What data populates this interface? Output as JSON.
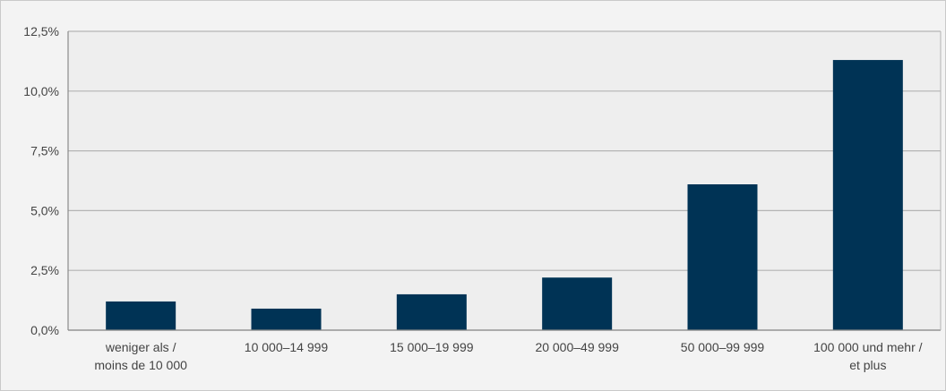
{
  "chart_data": {
    "type": "bar",
    "title": "",
    "xlabel": "",
    "ylabel": "",
    "categories": [
      [
        "weniger als /",
        "moins de 10 000"
      ],
      [
        "10 000–14 999"
      ],
      [
        "15 000–19 999"
      ],
      [
        "20 000–49 999"
      ],
      [
        "50 000–99 999"
      ],
      [
        "100 000 und mehr /",
        "et plus"
      ]
    ],
    "values": [
      1.2,
      0.9,
      1.5,
      2.2,
      6.1,
      11.3
    ],
    "ylim": [
      0,
      12.5
    ],
    "yticks": [
      0,
      2.5,
      5,
      7.5,
      10,
      12.5
    ],
    "ytick_labels": [
      "0,0%",
      "2,5%",
      "5,0%",
      "7,5%",
      "10,0%",
      "12,5%"
    ],
    "grid": true,
    "legend": "none",
    "colors": {
      "bar": "#003355",
      "plot_background": "#eeeeee",
      "grid": "#b4b4b4",
      "axis": "#8a8a8a"
    }
  }
}
